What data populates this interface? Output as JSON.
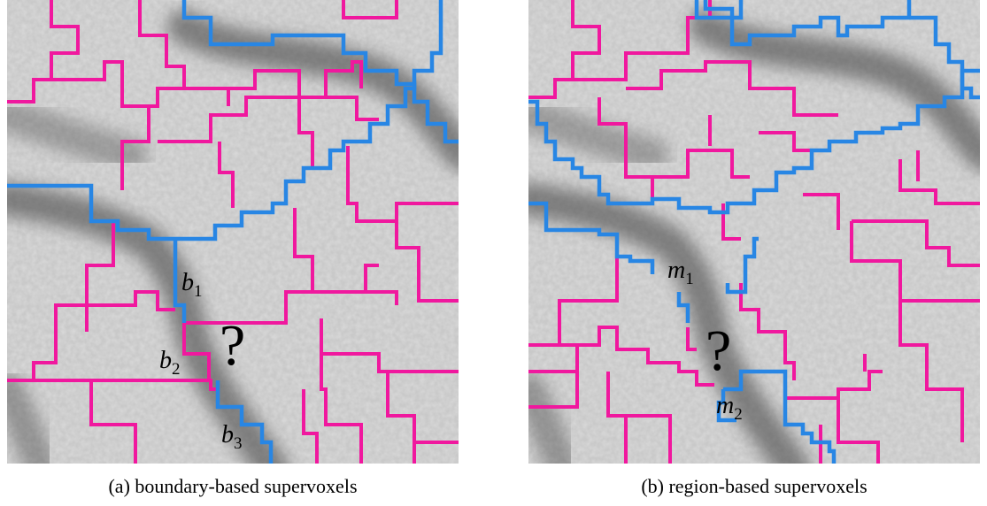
{
  "panels": [
    {
      "labels": [
        {
          "base": "b",
          "sub": "1"
        },
        {
          "base": "b",
          "sub": "2"
        },
        {
          "base": "b",
          "sub": "3"
        }
      ],
      "question": "?",
      "caption": "(a) boundary-based supervoxels"
    },
    {
      "labels": [
        {
          "base": "m",
          "sub": "1"
        },
        {
          "base": "m",
          "sub": "2"
        }
      ],
      "question": "?",
      "caption": "(b) region-based supervoxels"
    }
  ]
}
